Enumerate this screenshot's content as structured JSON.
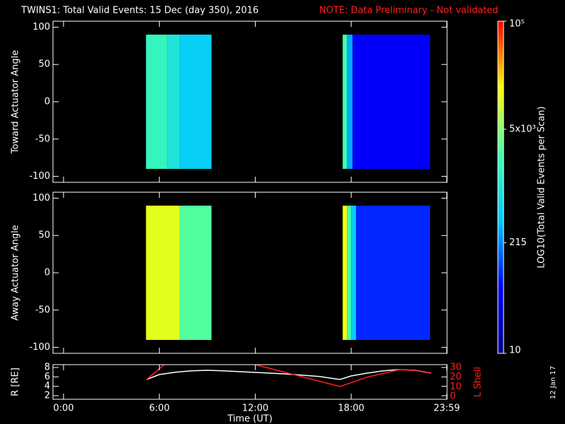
{
  "title": "TWINS1: Total Valid Events: 15 Dec (day 350), 2016",
  "note": "NOTE: Data Preliminary - Not validated",
  "footer_date": "12 Jan 17",
  "colorbar": {
    "title": "LOG10(Total Valid Events per Scan)",
    "log": true,
    "lim": [
      10,
      100000
    ],
    "ticks": [
      10,
      215,
      {
        "value": 5000,
        "label": "5x10³"
      },
      {
        "value": 100000,
        "label": "10⁵"
      }
    ],
    "colorscale": [
      "#00008c",
      "#0000ff",
      "#00c8ff",
      "#40ffb0",
      "#ffff00",
      "#ff0000"
    ]
  },
  "chart_data": [
    {
      "type": "heatmap",
      "ylabel": "Toward Actuator Angle",
      "xlim": [
        -0.66,
        24
      ],
      "ylim": [
        -108,
        108
      ],
      "yticks": [
        100,
        50,
        0,
        -50,
        -100
      ],
      "segments": [
        {
          "t0": 5.16,
          "t1": 6.49,
          "a0": -90,
          "a1": 90,
          "value": 1800
        },
        {
          "t0": 6.49,
          "t1": 7.28,
          "a0": -90,
          "a1": 90,
          "value": 1000
        },
        {
          "t0": 7.28,
          "t1": 9.26,
          "a0": -90,
          "a1": 90,
          "value": 500
        },
        {
          "t0": 17.47,
          "t1": 17.74,
          "a0": -90,
          "a1": 90,
          "value": 2500
        },
        {
          "t0": 17.74,
          "t1": 18.09,
          "a0": -90,
          "a1": 90,
          "value": 300
        },
        {
          "t0": 18.09,
          "t1": 22.94,
          "a0": -90,
          "a1": 90,
          "value": 60
        }
      ]
    },
    {
      "type": "heatmap",
      "ylabel": "Away Actuator Angle",
      "xlim": [
        -0.66,
        24
      ],
      "ylim": [
        -108,
        108
      ],
      "yticks": [
        100,
        50,
        0,
        -50,
        -100
      ],
      "segments": [
        {
          "t0": 5.16,
          "t1": 7.28,
          "a0": -90,
          "a1": 90,
          "value": 12000
        },
        {
          "t0": 7.28,
          "t1": 9.26,
          "a0": -90,
          "a1": 90,
          "value": 3000
        },
        {
          "t0": 17.47,
          "t1": 17.74,
          "a0": -90,
          "a1": 90,
          "value": 14000
        },
        {
          "t0": 17.74,
          "t1": 18.0,
          "a0": -90,
          "a1": 90,
          "value": 2500
        },
        {
          "t0": 18.0,
          "t1": 18.3,
          "a0": -90,
          "a1": 90,
          "value": 500
        },
        {
          "t0": 18.3,
          "t1": 22.94,
          "a0": -90,
          "a1": 90,
          "value": 90
        }
      ]
    },
    {
      "type": "line",
      "ylabel": "R [RE]",
      "y2label": "L Shell",
      "xlabel": "Time (UT)",
      "xlim": [
        -0.66,
        24
      ],
      "xticks": [
        {
          "value": 0,
          "label": "0:00"
        },
        {
          "value": 6,
          "label": "6:00"
        },
        {
          "value": 12,
          "label": "12:00"
        },
        {
          "value": 18,
          "label": "18:00"
        },
        {
          "value": 23.98,
          "label": "23:59"
        }
      ],
      "ylim": [
        1.25,
        8.6
      ],
      "yticks": [
        2,
        4,
        6,
        8
      ],
      "y2lim": [
        -3,
        33
      ],
      "y2ticks": [
        0,
        10,
        20,
        30
      ],
      "series": [
        {
          "color": "#ffffff",
          "axis": "y",
          "x": [
            5.2,
            6,
            7,
            8,
            9,
            10,
            12,
            14,
            16,
            17.3,
            18,
            19,
            20,
            21,
            22,
            23
          ],
          "values": [
            5.45,
            6.5,
            7.0,
            7.3,
            7.4,
            7.3,
            6.95,
            6.6,
            6.1,
            5.45,
            6.2,
            6.8,
            7.3,
            7.55,
            7.4,
            6.8
          ]
        },
        {
          "color": "#ff2020",
          "axis": "y2",
          "x": [
            5.2,
            6.3,
            9,
            12,
            17.3,
            19,
            21,
            22,
            23
          ],
          "values": [
            17.6,
            33,
            null,
            33,
            10.2,
            20,
            27.8,
            27,
            24
          ]
        }
      ]
    }
  ]
}
